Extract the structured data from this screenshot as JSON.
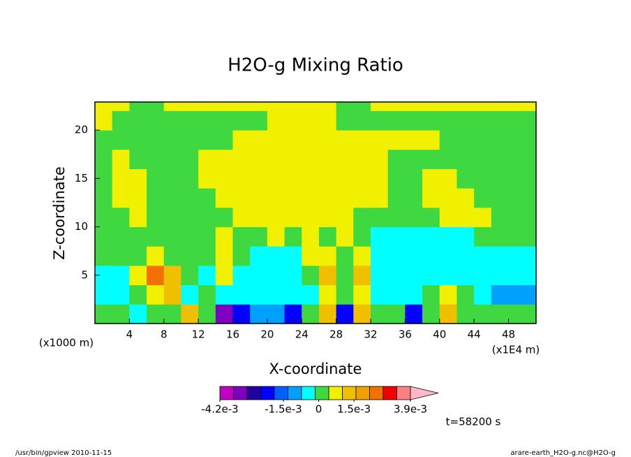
{
  "chart_data": {
    "type": "contour",
    "title": "H2O-g Mixing Ratio",
    "xlabel": "X-coordinate",
    "ylabel": "Z-coordinate",
    "xlabel_unit": "(x1E4 m)",
    "ylabel_unit": "(x1000 m)",
    "annotation": "t=58200 s",
    "footer_left": "/usr/bin/gpview  2010-11-15",
    "footer_right": "arare-earth_H2O-g.nc@H2O-g",
    "xlim": [
      0,
      51.2
    ],
    "ylim": [
      0,
      22.9
    ],
    "xticks": [
      4,
      8,
      12,
      16,
      20,
      24,
      28,
      32,
      36,
      40,
      44,
      48
    ],
    "yticks": [
      5,
      10,
      15,
      20
    ],
    "x": [
      1,
      3,
      5,
      7,
      9,
      11,
      13,
      15,
      17,
      19,
      21,
      23,
      25,
      27,
      29,
      31,
      33,
      35,
      37,
      39,
      41,
      43,
      45,
      47,
      49,
      51
    ],
    "y": [
      1,
      3,
      5,
      7,
      9,
      11,
      13,
      15,
      17,
      19,
      21,
      23
    ],
    "z": [
      [
        0.0001,
        0.0001,
        -0.0005,
        0.0001,
        0.0001,
        0.0013,
        0.0001,
        -0.0035,
        -0.002,
        -0.0012,
        -0.0012,
        -0.002,
        0.0001,
        0.0013,
        -0.002,
        0.0013,
        0.0001,
        0.0001,
        -0.002,
        0.0001,
        0.0013,
        0.0001,
        0.0001,
        0.0001,
        0.0001,
        0.0001
      ],
      [
        -0.0005,
        -0.0005,
        0.0001,
        0.0007,
        0.0013,
        -0.0005,
        0.0001,
        -0.0005,
        -0.0005,
        -0.0005,
        -0.0005,
        -0.0005,
        -0.0005,
        0.0007,
        0.0001,
        0.0007,
        -0.0005,
        -0.0005,
        -0.0005,
        0.0001,
        0.0007,
        0.0001,
        -0.0005,
        -0.0012,
        -0.0012,
        -0.0012
      ],
      [
        -0.0005,
        -0.0005,
        0.0007,
        0.0025,
        0.0013,
        0.0001,
        -0.0005,
        0.0007,
        -0.0005,
        -0.0005,
        -0.0005,
        -0.0005,
        0.0001,
        0.0013,
        0.0001,
        0.0013,
        -0.0005,
        -0.0005,
        -0.0005,
        -0.0005,
        -0.0005,
        -0.0005,
        -0.0005,
        -0.0005,
        -0.0005,
        -0.0005
      ],
      [
        0.0001,
        0.0001,
        0.0001,
        0.0007,
        0.0001,
        0.0001,
        0.0001,
        0.0007,
        0.0001,
        -0.0005,
        -0.0005,
        -0.0005,
        0.0007,
        0.0007,
        0.0001,
        0.0007,
        -0.0005,
        -0.0005,
        -0.0005,
        -0.0005,
        -0.0005,
        -0.0005,
        -0.0005,
        -0.0005,
        -0.0005,
        -0.0005
      ],
      [
        0.0001,
        0.0001,
        0.0001,
        0.0001,
        0.0001,
        0.0001,
        0.0001,
        0.0007,
        0.0001,
        0.0001,
        0.0007,
        0.0001,
        0.0007,
        0.0001,
        0.0007,
        0.0001,
        -0.0005,
        -0.0005,
        -0.0005,
        -0.0005,
        -0.0005,
        -0.0005,
        0.0001,
        0.0001,
        0.0001,
        0.0001
      ],
      [
        0.0001,
        0.0001,
        0.0007,
        0.0001,
        0.0001,
        0.0001,
        0.0001,
        0.0001,
        0.0007,
        0.0007,
        0.0007,
        0.0007,
        0.0007,
        0.0007,
        0.0007,
        0.0001,
        0.0001,
        0.0001,
        0.0001,
        0.0001,
        0.0007,
        0.0007,
        0.0007,
        0.0001,
        0.0001,
        0.0001
      ],
      [
        0.0001,
        0.0007,
        0.0007,
        0.0001,
        0.0001,
        0.0001,
        0.0001,
        0.0007,
        0.0007,
        0.0007,
        0.0007,
        0.0007,
        0.0007,
        0.0007,
        0.0007,
        0.0007,
        0.0007,
        0.0001,
        0.0001,
        0.0007,
        0.0007,
        0.0007,
        0.0001,
        0.0001,
        0.0001,
        0.0001
      ],
      [
        0.0001,
        0.0007,
        0.0007,
        0.0001,
        0.0001,
        0.0001,
        0.0007,
        0.0007,
        0.0007,
        0.0007,
        0.0007,
        0.0007,
        0.0007,
        0.0007,
        0.0007,
        0.0007,
        0.0007,
        0.0001,
        0.0001,
        0.0007,
        0.0007,
        0.0001,
        0.0001,
        0.0001,
        0.0001,
        0.0001
      ],
      [
        0.0001,
        0.0007,
        0.0001,
        0.0001,
        0.0001,
        0.0001,
        0.0007,
        0.0007,
        0.0007,
        0.0007,
        0.0007,
        0.0007,
        0.0007,
        0.0007,
        0.0007,
        0.0007,
        0.0007,
        0.0001,
        0.0001,
        0.0001,
        0.0001,
        0.0001,
        0.0001,
        0.0001,
        0.0001,
        0.0001
      ],
      [
        0.0001,
        0.0001,
        0.0001,
        0.0001,
        0.0001,
        0.0001,
        0.0001,
        0.0001,
        0.0007,
        0.0007,
        0.0007,
        0.0007,
        0.0007,
        0.0007,
        0.0007,
        0.0007,
        0.0007,
        0.0007,
        0.0007,
        0.0007,
        0.0001,
        0.0001,
        0.0001,
        0.0001,
        0.0001,
        0.0001
      ],
      [
        0.0007,
        0.0001,
        0.0001,
        0.0001,
        0.0001,
        0.0001,
        0.0001,
        0.0001,
        0.0001,
        0.0001,
        0.0007,
        0.0007,
        0.0007,
        0.0007,
        0.0001,
        0.0001,
        0.0001,
        0.0001,
        0.0001,
        0.0001,
        0.0001,
        0.0001,
        0.0001,
        0.0001,
        0.0001,
        0.0001
      ],
      [
        0.0007,
        0.0007,
        0.0001,
        0.0001,
        0.0007,
        0.0007,
        0.0007,
        0.0007,
        0.0007,
        0.0007,
        0.0007,
        0.0007,
        0.0007,
        0.0007,
        0.0001,
        0.0001,
        0.0007,
        0.0007,
        0.0007,
        0.0007,
        0.0007,
        0.0007,
        0.0007,
        0.0007,
        0.0007,
        0.0007
      ]
    ],
    "colorbar": {
      "range": [
        -0.0042,
        0.0039
      ],
      "colors": [
        "#c000c0",
        "#8000c0",
        "#2000a0",
        "#0000ff",
        "#0060ff",
        "#00a0ff",
        "#00ffff",
        "#40d840",
        "#f0f000",
        "#f0c000",
        "#f0a000",
        "#f07000",
        "#f00000",
        "#ff8080"
      ],
      "extend_color": "#ffb8c8",
      "ticks": [
        {
          "value": -0.0042,
          "label": "-4.2e-3"
        },
        {
          "value": -0.0015,
          "label": "-1.5e-3"
        },
        0,
        {
          "value": 0.0015,
          "label": "1.5e-3"
        },
        {
          "value": 0.0039,
          "label": "3.9e-3"
        }
      ]
    }
  }
}
